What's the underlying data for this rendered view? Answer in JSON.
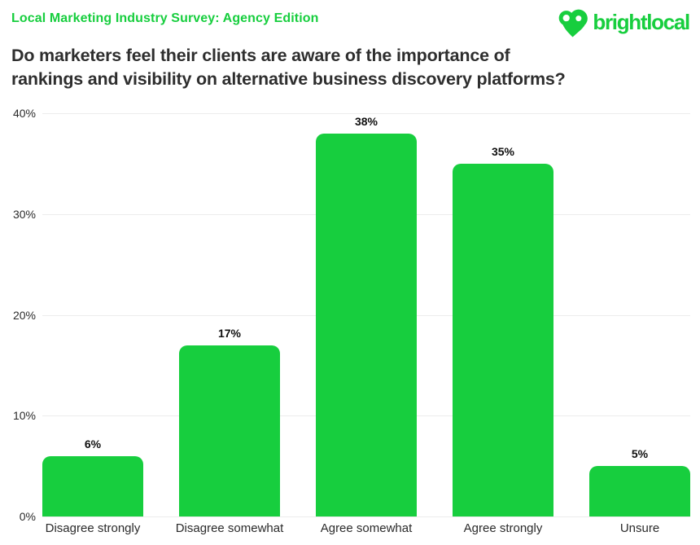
{
  "header": {
    "eyebrow": "Local Marketing Industry Survey: Agency Edition",
    "title_line1": "Do marketers feel their clients are aware of the importance of",
    "title_line2": "rankings and visibility on alternative business discovery platforms?",
    "logo_text": "brightlocal",
    "logo_icon": "brightlocal-heart-pin-icon"
  },
  "colors": {
    "brand_green": "#17CE3E",
    "title_text": "#2E2E2E",
    "axis_text": "#2B2B2B",
    "value_text": "#0F0F0F",
    "gridline": "#ECECEC",
    "background": "#FFFFFF"
  },
  "chart_data": {
    "type": "bar",
    "title": "Do marketers feel their clients are aware of the importance of rankings and visibility on alternative business discovery platforms?",
    "categories": [
      "Disagree strongly",
      "Disagree somewhat",
      "Agree somewhat",
      "Agree strongly",
      "Unsure"
    ],
    "values": [
      6,
      17,
      38,
      35,
      5
    ],
    "value_labels": [
      "6%",
      "17%",
      "38%",
      "35%",
      "5%"
    ],
    "xlabel": "",
    "ylabel": "",
    "ylim": [
      0,
      40
    ],
    "yticks": [
      0,
      10,
      20,
      30,
      40
    ],
    "ytick_labels": [
      "0%",
      "10%",
      "20%",
      "30%",
      "40%"
    ],
    "grid": "horizontal",
    "legend": "none",
    "bar_color": "#17CE3E"
  }
}
